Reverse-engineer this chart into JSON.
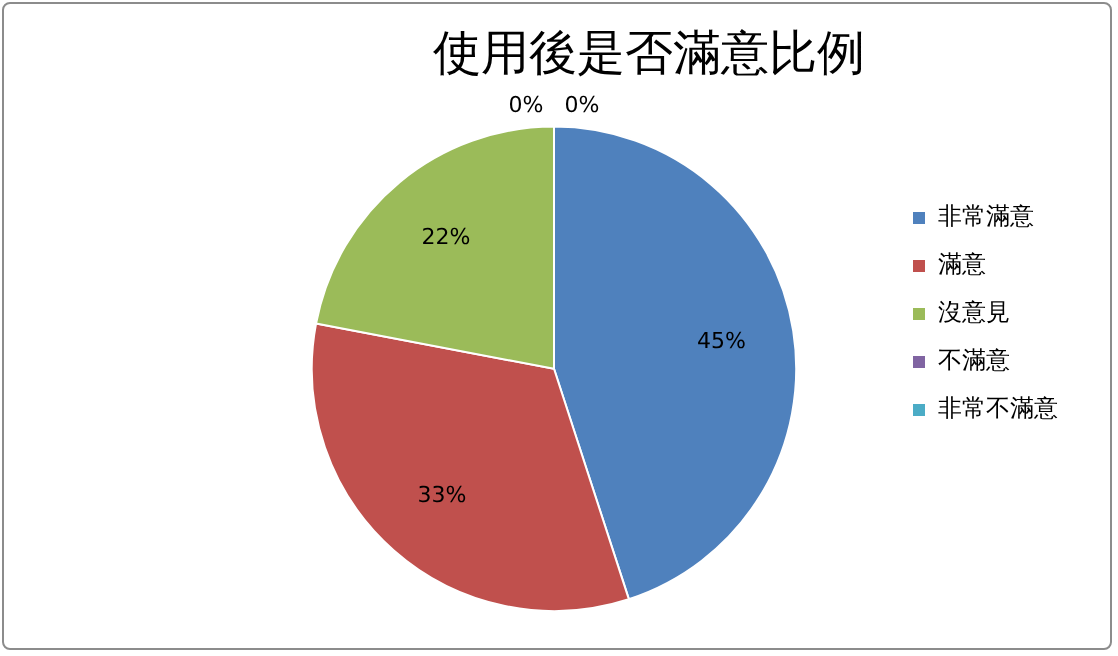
{
  "chart_data": {
    "type": "pie",
    "title": "使用後是否滿意比例",
    "categories": [
      "非常滿意",
      "滿意",
      "沒意見",
      "不滿意",
      "非常不滿意"
    ],
    "values": [
      45,
      33,
      22,
      0,
      0
    ],
    "colors": [
      "#4f81bd",
      "#c0504d",
      "#9bbb59",
      "#8064a2",
      "#4bacc6"
    ],
    "value_labels": [
      "45%",
      "33%",
      "22%",
      "0%",
      "0%"
    ],
    "legend": "right"
  }
}
